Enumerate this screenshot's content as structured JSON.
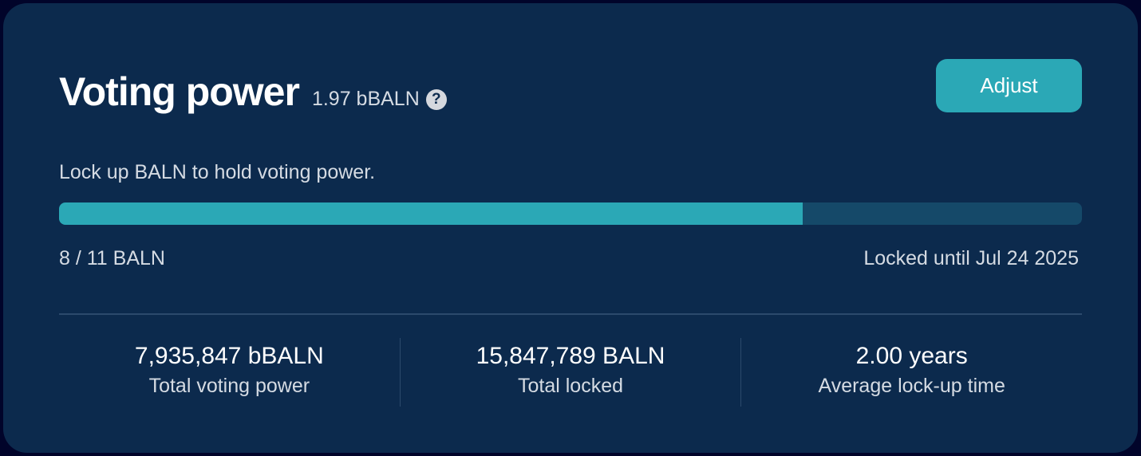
{
  "header": {
    "title": "Voting power",
    "balance": "1.97 bBALN",
    "help_icon": "question-circle-icon",
    "adjust_label": "Adjust"
  },
  "description": "Lock up BALN to hold voting power.",
  "progress": {
    "locked": 8,
    "total": 11,
    "percent": 72.7,
    "label": "8 / 11 BALN",
    "locked_until": "Locked until Jul 24 2025"
  },
  "stats": [
    {
      "value": "7,935,847 bBALN",
      "label": "Total voting power"
    },
    {
      "value": "15,847,789 BALN",
      "label": "Total locked"
    },
    {
      "value": "2.00 years",
      "label": "Average lock-up time"
    }
  ],
  "colors": {
    "background": "#0c2a4d",
    "accent": "#2ba8b6",
    "track": "#154969"
  }
}
